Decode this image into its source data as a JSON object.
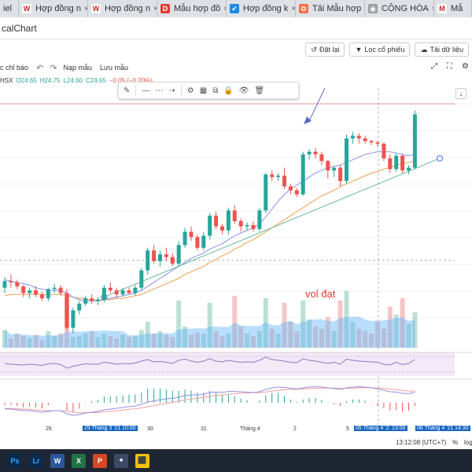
{
  "browser": {
    "tabs": [
      {
        "label": "iel",
        "icon": "",
        "color": "#dee1e6",
        "fg": "#333"
      },
      {
        "label": "Hợp đồng n",
        "icon": "W",
        "color": "#ffffff",
        "fg": "#c62828"
      },
      {
        "label": "Hợp đồng n",
        "icon": "W",
        "color": "#ffffff",
        "fg": "#c62828"
      },
      {
        "label": "Mẫu hợp đồ",
        "icon": "D",
        "color": "#e53935",
        "fg": "#ffffff"
      },
      {
        "label": "Hợp đồng k",
        "icon": "✔",
        "color": "#1e88e5",
        "fg": "#ffffff"
      },
      {
        "label": "Tải Mẫu hợp",
        "icon": "✿",
        "color": "#ff7043",
        "fg": "#ffffff"
      },
      {
        "label": "CỘNG HÒA",
        "icon": "◉",
        "color": "#9e9e9e",
        "fg": "#ffffff"
      },
      {
        "label": "Mẫ",
        "icon": "M",
        "color": "#ffffff",
        "fg": "#c62828"
      }
    ],
    "close_glyph": "×"
  },
  "app": {
    "title": "calChart",
    "buttons": [
      {
        "icon": "↺",
        "label": "Đặt lại"
      },
      {
        "icon": "▼",
        "label": "Lọc cổ phiếu"
      },
      {
        "icon": "☁",
        "label": "Tải dữ liệu"
      }
    ]
  },
  "toolbar": {
    "indicators_label": "c chỉ báo",
    "undo_glyph": "↶",
    "redo_glyph": "↷",
    "load_template": "Nạp mẫu",
    "save_template": "Lưu mẫu",
    "right_icons": [
      "⤢",
      "⛶",
      "⚙"
    ]
  },
  "legend": {
    "exchange": "HSX",
    "open": "O24.65",
    "high": "H24.75",
    "low": "L24.60",
    "close": "C24.65",
    "change": "−0.05 (−0.20%)"
  },
  "drawing_toolbar": {
    "icons": [
      "✎",
      "—",
      "⋯",
      "⇢",
      "⚙",
      "▦",
      "⧉",
      "🔒",
      "👁",
      "🗑"
    ]
  },
  "annotation": {
    "text": "vol đạt"
  },
  "right_button": "↓",
  "xaxis": {
    "ticks": [
      {
        "label": "26",
        "pos": 58
      },
      {
        "label": "29 Tháng 3 '21",
        "pos": 105,
        "hl": true
      },
      {
        "label": "10:00",
        "pos": 153,
        "hl": true
      },
      {
        "label": "30",
        "pos": 187
      },
      {
        "label": "31",
        "pos": 255
      },
      {
        "label": "Tháng 4",
        "pos": 305
      },
      {
        "label": "2",
        "pos": 373
      },
      {
        "label": "5",
        "pos": 440
      },
      {
        "label": "05 Tháng 4 '21",
        "pos": 450,
        "hl": true
      },
      {
        "label": "13:00",
        "pos": 496,
        "hl": true
      },
      {
        "label": "06 Tháng 4 '21",
        "pos": 528,
        "hl": true
      },
      {
        "label": "14:30",
        "pos": 576,
        "hl": true
      }
    ]
  },
  "status": {
    "time": "13:12:08 (UTC+7)",
    "percent": "%",
    "log": "log"
  },
  "taskbar": [
    {
      "name": "photoshop",
      "label": "Ps",
      "bg": "#0b2a4a",
      "fg": "#31a8ff"
    },
    {
      "name": "lightroom",
      "label": "Lr",
      "bg": "#0b2a4a",
      "fg": "#31a8ff"
    },
    {
      "name": "word",
      "label": "W",
      "bg": "#2b579a",
      "fg": "#ffffff"
    },
    {
      "name": "excel",
      "label": "X",
      "bg": "#217346",
      "fg": "#ffffff"
    },
    {
      "name": "powerpoint",
      "label": "P",
      "bg": "#d24726",
      "fg": "#ffffff"
    },
    {
      "name": "app-blue",
      "label": "✦",
      "bg": "#3a4a66",
      "fg": "#ffffff"
    },
    {
      "name": "chart-app",
      "label": "⬛",
      "bg": "#f2c200",
      "fg": "#000000"
    }
  ],
  "colors": {
    "up": "#26a69a",
    "down": "#ef5350",
    "ma_fast": "#8c8ff0",
    "ma_slow": "#f0a050",
    "trend": "#66bb9a"
  },
  "chart_data": {
    "type": "candlestick",
    "candles": [
      [
        62.0,
        62.8,
        61.6,
        62.5
      ],
      [
        62.5,
        63.0,
        62.0,
        62.4
      ],
      [
        62.4,
        62.6,
        61.9,
        62.1
      ],
      [
        62.1,
        62.2,
        61.3,
        61.6
      ],
      [
        61.6,
        62.0,
        61.2,
        61.8
      ],
      [
        61.8,
        62.1,
        61.3,
        61.5
      ],
      [
        61.5,
        61.7,
        61.0,
        61.2
      ],
      [
        61.2,
        62.0,
        61.0,
        61.9
      ],
      [
        61.9,
        62.3,
        61.6,
        62.0
      ],
      [
        62.0,
        62.2,
        61.4,
        61.6
      ],
      [
        61.6,
        61.9,
        58.8,
        59.0
      ],
      [
        59.0,
        60.5,
        58.6,
        60.3
      ],
      [
        60.3,
        61.0,
        60.0,
        60.8
      ],
      [
        60.8,
        61.4,
        60.6,
        61.2
      ],
      [
        61.2,
        61.5,
        60.8,
        61.0
      ],
      [
        61.0,
        61.3,
        60.7,
        61.1
      ],
      [
        61.1,
        62.2,
        60.9,
        62.0
      ],
      [
        62.0,
        62.4,
        61.6,
        61.8
      ],
      [
        61.8,
        62.0,
        61.2,
        61.5
      ],
      [
        61.5,
        62.0,
        61.3,
        61.8
      ],
      [
        61.8,
        62.0,
        61.5,
        61.6
      ],
      [
        61.6,
        62.2,
        61.4,
        62.0
      ],
      [
        62.0,
        63.5,
        61.8,
        63.3
      ],
      [
        63.3,
        65.0,
        63.0,
        64.8
      ],
      [
        64.8,
        65.2,
        63.8,
        64.0
      ],
      [
        64.0,
        64.8,
        63.6,
        64.5
      ],
      [
        64.5,
        65.0,
        64.0,
        64.3
      ],
      [
        64.3,
        64.6,
        63.6,
        63.8
      ],
      [
        63.8,
        65.5,
        63.6,
        65.2
      ],
      [
        65.2,
        66.5,
        65.0,
        66.2
      ],
      [
        66.2,
        66.6,
        65.5,
        65.8
      ],
      [
        65.8,
        66.0,
        64.8,
        65.0
      ],
      [
        65.0,
        66.2,
        64.8,
        65.9
      ],
      [
        65.9,
        67.6,
        65.6,
        67.4
      ],
      [
        67.4,
        67.7,
        66.4,
        66.6
      ],
      [
        66.6,
        66.8,
        66.0,
        66.3
      ],
      [
        66.3,
        68.0,
        66.0,
        67.8
      ],
      [
        67.8,
        68.2,
        66.8,
        67.0
      ],
      [
        67.0,
        67.2,
        66.2,
        66.6
      ],
      [
        66.6,
        66.9,
        66.3,
        66.7
      ],
      [
        66.7,
        67.0,
        66.2,
        66.4
      ],
      [
        66.4,
        68.0,
        66.2,
        67.8
      ],
      [
        67.8,
        70.6,
        67.6,
        70.5
      ],
      [
        70.5,
        70.8,
        70.0,
        70.3
      ],
      [
        70.3,
        70.6,
        70.0,
        70.4
      ],
      [
        70.4,
        71.0,
        69.4,
        69.6
      ],
      [
        69.6,
        69.8,
        69.0,
        69.3
      ],
      [
        69.3,
        69.5,
        68.8,
        69.0
      ],
      [
        69.0,
        72.2,
        68.9,
        72.0
      ],
      [
        72.0,
        72.4,
        71.6,
        72.2
      ],
      [
        72.2,
        72.5,
        71.7,
        72.0
      ],
      [
        72.0,
        72.2,
        71.2,
        71.5
      ],
      [
        71.5,
        71.6,
        70.2,
        70.8
      ],
      [
        70.8,
        71.1,
        70.3,
        71.0
      ],
      [
        71.0,
        71.2,
        69.6,
        70.0
      ],
      [
        70.0,
        73.5,
        69.8,
        73.2
      ],
      [
        73.2,
        73.7,
        72.8,
        73.4
      ],
      [
        73.4,
        73.6,
        72.8,
        73.2
      ],
      [
        73.2,
        73.4,
        72.8,
        73.0
      ],
      [
        73.0,
        73.1,
        72.7,
        72.9
      ],
      [
        72.9,
        73.0,
        72.6,
        72.8
      ],
      [
        72.8,
        72.9,
        71.5,
        71.7
      ],
      [
        71.7,
        72.0,
        70.6,
        70.9
      ],
      [
        70.9,
        72.1,
        70.7,
        71.9
      ],
      [
        71.9,
        72.0,
        70.6,
        70.8
      ],
      [
        70.8,
        71.2,
        70.5,
        71.0
      ],
      [
        71.0,
        75.3,
        70.9,
        75.0
      ]
    ],
    "volumes": [
      15,
      8,
      12,
      10,
      8,
      11,
      7,
      14,
      10,
      12,
      45,
      9,
      10,
      12,
      14,
      9,
      12,
      10,
      8,
      11,
      9,
      10,
      15,
      22,
      12,
      14,
      11,
      9,
      40,
      18,
      11,
      13,
      12,
      38,
      14,
      10,
      12,
      44,
      18,
      12,
      10,
      14,
      42,
      16,
      12,
      38,
      22,
      14,
      40,
      24,
      18,
      16,
      26,
      14,
      40,
      48,
      22,
      16,
      14,
      12,
      22,
      16,
      35,
      28,
      42,
      20,
      30
    ],
    "ma_fast": [
      62.6,
      62.5,
      62.4,
      62.3,
      62.2,
      62.0,
      61.9,
      61.8,
      61.8,
      61.8,
      61.6,
      61.3,
      61.1,
      61.0,
      61.0,
      61.0,
      61.1,
      61.2,
      61.3,
      61.4,
      61.5,
      61.6,
      61.8,
      62.1,
      62.4,
      62.7,
      63.0,
      63.3,
      63.6,
      63.9,
      64.2,
      64.4,
      64.6,
      64.9,
      65.1,
      65.3,
      65.6,
      65.9,
      66.1,
      66.3,
      66.5,
      66.8,
      67.3,
      67.9,
      68.5,
      69.0,
      69.4,
      69.7,
      70.0,
      70.3,
      70.6,
      70.8,
      71.0,
      71.1,
      71.2,
      71.4,
      71.6,
      71.8,
      72.0,
      72.1,
      72.2,
      72.2,
      72.2,
      72.1,
      72.0,
      71.9,
      72.0
    ],
    "ma_slow": [
      61.4,
      61.5,
      61.5,
      61.5,
      61.5,
      61.5,
      61.5,
      61.5,
      61.5,
      61.5,
      61.4,
      61.3,
      61.2,
      61.2,
      61.1,
      61.1,
      61.1,
      61.1,
      61.2,
      61.2,
      61.3,
      61.4,
      61.5,
      61.7,
      61.9,
      62.1,
      62.3,
      62.5,
      62.7,
      63.0,
      63.2,
      63.4,
      63.6,
      63.9,
      64.1,
      64.4,
      64.6,
      64.9,
      65.1,
      65.4,
      65.6,
      65.9,
      66.2,
      66.5,
      66.8,
      67.1,
      67.4,
      67.7,
      68.0,
      68.3,
      68.6,
      68.9,
      69.1,
      69.3,
      69.6,
      69.8,
      70.0,
      70.2,
      70.4,
      70.6,
      70.7,
      70.9,
      71.0,
      71.2,
      71.3,
      71.4,
      71.5
    ],
    "trend_line": {
      "from": [
        16,
        61.3
      ],
      "to": [
        70,
        71.7
      ]
    },
    "rsi": [
      52,
      50,
      49,
      48,
      50,
      49,
      47,
      51,
      52,
      49,
      40,
      45,
      48,
      51,
      50,
      50,
      55,
      53,
      50,
      52,
      51,
      53,
      58,
      62,
      56,
      57,
      55,
      52,
      60,
      63,
      58,
      55,
      58,
      64,
      58,
      56,
      60,
      57,
      55,
      56,
      55,
      60,
      68,
      62,
      60,
      58,
      55,
      54,
      64,
      60,
      58,
      55,
      52,
      55,
      50,
      63,
      60,
      58,
      57,
      56,
      55,
      50,
      48,
      55,
      49,
      52,
      62
    ],
    "macd": [
      -0.4,
      -0.4,
      -0.45,
      -0.5,
      -0.5,
      -0.55,
      -0.6,
      -0.55,
      -0.5,
      -0.5,
      -0.7,
      -0.8,
      -0.75,
      -0.65,
      -0.6,
      -0.55,
      -0.45,
      -0.4,
      -0.35,
      -0.3,
      -0.25,
      -0.2,
      -0.1,
      0.05,
      0.12,
      0.2,
      0.25,
      0.28,
      0.35,
      0.45,
      0.5,
      0.5,
      0.55,
      0.65,
      0.68,
      0.66,
      0.72,
      0.72,
      0.7,
      0.68,
      0.65,
      0.7,
      0.85,
      0.95,
      1.0,
      0.98,
      0.92,
      0.88,
      0.95,
      1.0,
      1.02,
      1.0,
      0.95,
      0.9,
      0.85,
      0.95,
      1.0,
      1.02,
      1.0,
      0.95,
      0.88,
      0.8,
      0.7,
      0.68,
      0.6,
      0.58,
      0.66
    ],
    "signal": [
      -0.35,
      -0.36,
      -0.38,
      -0.4,
      -0.42,
      -0.45,
      -0.48,
      -0.5,
      -0.5,
      -0.5,
      -0.54,
      -0.6,
      -0.63,
      -0.64,
      -0.63,
      -0.61,
      -0.58,
      -0.54,
      -0.5,
      -0.46,
      -0.42,
      -0.38,
      -0.32,
      -0.25,
      -0.18,
      -0.1,
      -0.03,
      0.03,
      0.1,
      0.17,
      0.24,
      0.29,
      0.34,
      0.4,
      0.46,
      0.5,
      0.54,
      0.58,
      0.61,
      0.63,
      0.64,
      0.65,
      0.69,
      0.74,
      0.79,
      0.83,
      0.85,
      0.86,
      0.88,
      0.9,
      0.92,
      0.94,
      0.94,
      0.93,
      0.92,
      0.92,
      0.93,
      0.95,
      0.96,
      0.96,
      0.94,
      0.91,
      0.87,
      0.83,
      0.79,
      0.75,
      0.73
    ],
    "price_range": [
      57.5,
      76.5
    ],
    "rsi_range": [
      20,
      80
    ],
    "macd_range": [
      -1.2,
      1.4
    ]
  }
}
